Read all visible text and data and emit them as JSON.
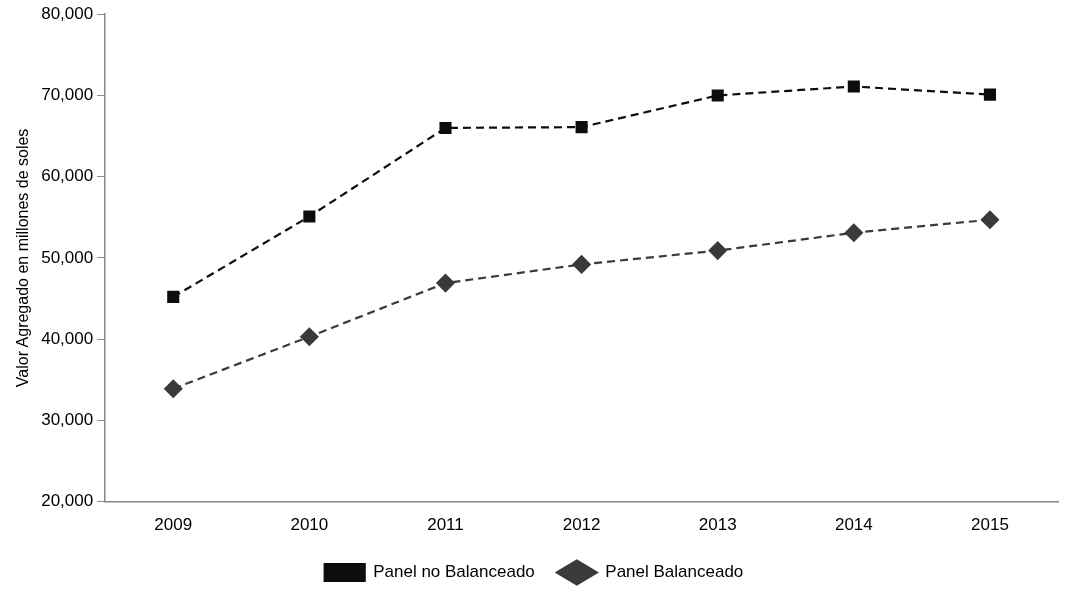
{
  "chart_data": {
    "type": "line",
    "ylabel": "Valor Agregado en millones de soles",
    "categories": [
      "2009",
      "2010",
      "2011",
      "2012",
      "2013",
      "2014",
      "2015"
    ],
    "series": [
      {
        "name": "Panel no Balanceado",
        "color": "#0d0d0d",
        "marker": "square",
        "line_style": "dashed",
        "values": [
          45200,
          55100,
          66000,
          66100,
          70000,
          71100,
          70100
        ]
      },
      {
        "name": "Panel Balanceado",
        "color": "#3a3a3a",
        "marker": "diamond",
        "line_style": "dashed",
        "values": [
          33900,
          40300,
          46900,
          49200,
          50900,
          53100,
          54700
        ]
      }
    ],
    "ylim": [
      20000,
      80000
    ],
    "yticks": [
      {
        "value": 20000,
        "label": "20,000"
      },
      {
        "value": 30000,
        "label": "30,000"
      },
      {
        "value": 40000,
        "label": "40,000"
      },
      {
        "value": 50000,
        "label": "50,000"
      },
      {
        "value": 60000,
        "label": "60,000"
      },
      {
        "value": 70000,
        "label": "70,000"
      },
      {
        "value": 80000,
        "label": "80,000"
      }
    ],
    "grid": false,
    "legend": "bottom"
  }
}
